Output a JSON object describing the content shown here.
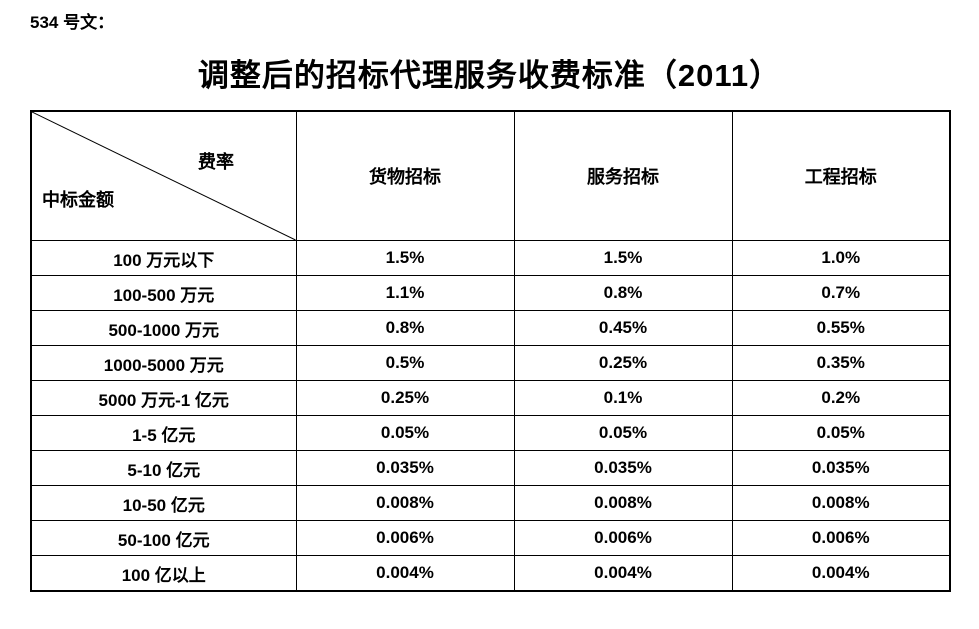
{
  "doc": {
    "ref_label": "534 号文：",
    "title": "调整后的招标代理服务收费标准（2011）"
  },
  "table": {
    "corner": {
      "top_label": "费率",
      "bottom_label": "中标金额"
    },
    "columns": [
      "货物招标",
      "服务招标",
      "工程招标"
    ],
    "rows": [
      {
        "label": "100 万元以下",
        "values": [
          "1.5%",
          "1.5%",
          "1.0%"
        ]
      },
      {
        "label": "100-500 万元",
        "values": [
          "1.1%",
          "0.8%",
          "0.7%"
        ]
      },
      {
        "label": "500-1000 万元",
        "values": [
          "0.8%",
          "0.45%",
          "0.55%"
        ]
      },
      {
        "label": "1000-5000 万元",
        "values": [
          "0.5%",
          "0.25%",
          "0.35%"
        ]
      },
      {
        "label": "5000 万元-1 亿元",
        "values": [
          "0.25%",
          "0.1%",
          "0.2%"
        ]
      },
      {
        "label": "1-5 亿元",
        "values": [
          "0.05%",
          "0.05%",
          "0.05%"
        ]
      },
      {
        "label": "5-10 亿元",
        "values": [
          "0.035%",
          "0.035%",
          "0.035%"
        ]
      },
      {
        "label": "10-50 亿元",
        "values": [
          "0.008%",
          "0.008%",
          "0.008%"
        ]
      },
      {
        "label": "50-100 亿元",
        "values": [
          "0.006%",
          "0.006%",
          "0.006%"
        ]
      },
      {
        "label": "100 亿以上",
        "values": [
          "0.004%",
          "0.004%",
          "0.004%"
        ]
      }
    ]
  },
  "colors": {
    "text": "#000000",
    "background": "#ffffff",
    "border": "#000000"
  }
}
